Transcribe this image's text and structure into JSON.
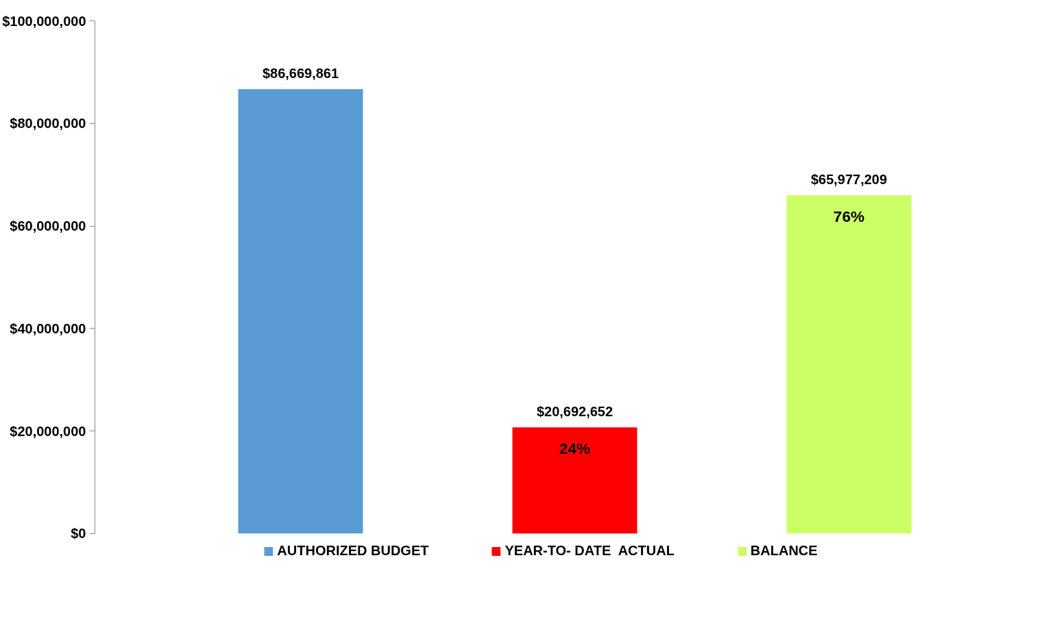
{
  "chart_data": {
    "type": "bar",
    "categories": [
      null,
      null,
      null
    ],
    "series": [
      {
        "name": "AUTHORIZED BUDGET",
        "color": "#5b9bd5",
        "values": [
          86669861,
          null,
          null
        ],
        "value_labels": [
          "$86,669,861",
          null,
          null
        ]
      },
      {
        "name": "YEAR-TO- DATE  ACTUAL",
        "color": "#ff0000",
        "values": [
          null,
          20692652,
          null
        ],
        "value_labels": [
          null,
          "$20,692,652",
          null
        ]
      },
      {
        "name": "BALANCE",
        "color": "#ccff66",
        "values": [
          null,
          null,
          65977209
        ],
        "value_labels": [
          null,
          null,
          "$65,977,209"
        ]
      }
    ],
    "annotations": [
      {
        "text": "24%",
        "y": 20692652
      },
      {
        "text": "76%",
        "y": 65977209
      }
    ],
    "ylim": [
      0,
      100000000
    ],
    "yticks": [
      {
        "value": 0,
        "label": "$0"
      },
      {
        "value": 20000000,
        "label": "$20,000,000"
      },
      {
        "value": 40000000,
        "label": "$40,000,000"
      },
      {
        "value": 60000000,
        "label": "$60,000,000"
      },
      {
        "value": 80000000,
        "label": "$80,000,000"
      },
      {
        "value": 100000000,
        "label": "$100,000,000"
      }
    ],
    "grid": false,
    "stacked": true,
    "legend": "bottom",
    "tick_labels": "y"
  }
}
